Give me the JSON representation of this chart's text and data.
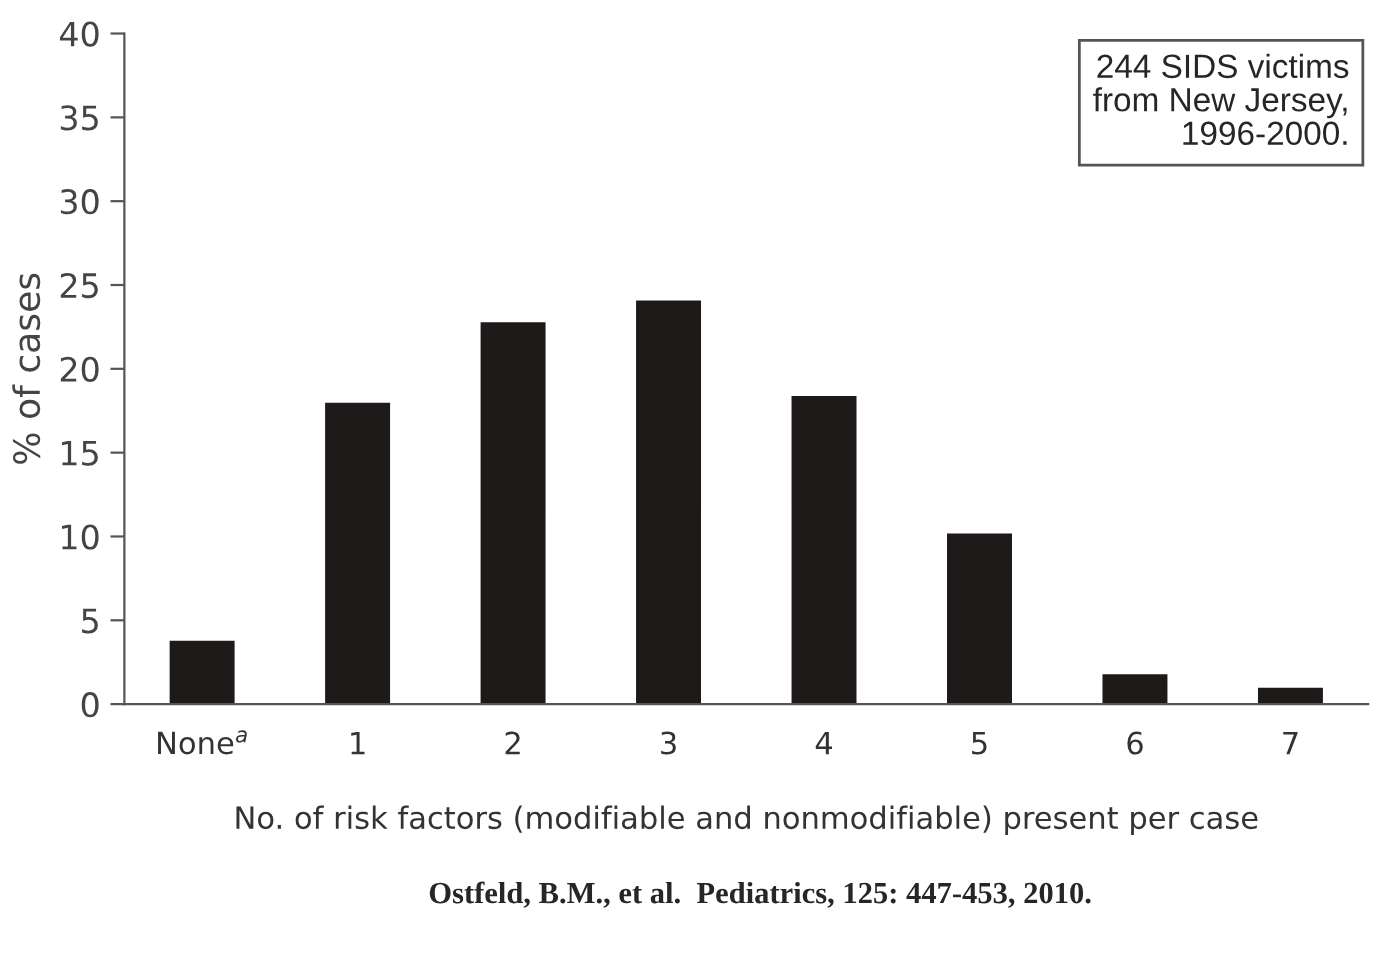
{
  "chart_data": {
    "type": "bar",
    "categories": [
      "None$^{a}$",
      "1",
      "2",
      "3",
      "4",
      "5",
      "6",
      "7"
    ],
    "values": [
      3.7,
      17.9,
      22.7,
      24.0,
      18.3,
      10.1,
      1.7,
      0.9
    ],
    "color": "#1e1a1a",
    "xlabel": "No. of risk factors (modifiable and nonmodifiable) present per case",
    "ylabel": "% of cases",
    "ylim": [
      0,
      40
    ],
    "yticks": [
      0,
      5,
      10,
      15,
      20,
      25,
      30,
      35,
      40
    ],
    "grid": false,
    "legend": false,
    "annotations": [
      "244 SIDS victims\nfrom New Jersey,\n1996-2000.",
      "Ostfeld, B.M., et al.  Pediatrics, 125: 447-453, 2010."
    ]
  }
}
